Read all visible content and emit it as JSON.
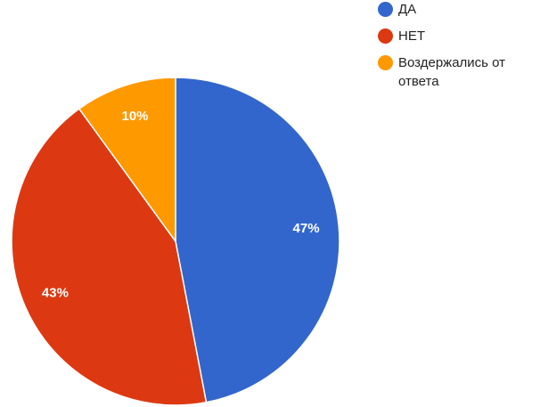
{
  "chart_data": {
    "type": "pie",
    "categories": [
      "ДА",
      "НЕТ",
      "Воздержались от ответа"
    ],
    "values": [
      47,
      43,
      10
    ],
    "value_labels": [
      "47%",
      "43%",
      "10%"
    ],
    "colors": [
      "#3366cc",
      "#dc3912",
      "#ff9900"
    ]
  }
}
